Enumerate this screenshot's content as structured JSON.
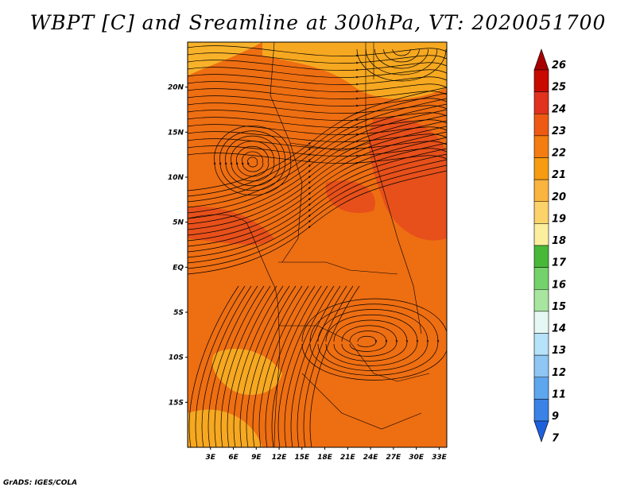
{
  "title": "WBPT [C] and Sreamline at 300hPa, VT: 2020051700",
  "credit": "GrADS: IGES/COLA",
  "map": {
    "lat_labels": [
      "20N",
      "15N",
      "10N",
      "5N",
      "EQ",
      "5S",
      "10S",
      "15S"
    ],
    "lat_values": [
      20,
      15,
      10,
      5,
      0,
      -5,
      -10,
      -15
    ],
    "lon_labels": [
      "3E",
      "6E",
      "9E",
      "12E",
      "15E",
      "18E",
      "21E",
      "24E",
      "27E",
      "30E",
      "33E"
    ],
    "lon_values": [
      3,
      6,
      9,
      12,
      15,
      18,
      21,
      24,
      27,
      30,
      33
    ],
    "lon_range": [
      0,
      34
    ],
    "lat_range": [
      -20,
      25
    ],
    "background_color": "#ee6e12",
    "regions": [
      {
        "name": "northeast-cool",
        "color": "#f6a820"
      },
      {
        "name": "north-cool",
        "color": "#f8b22a"
      },
      {
        "name": "southwest-cool",
        "color": "#f6a820"
      },
      {
        "name": "west-warm",
        "color": "#e7501a"
      },
      {
        "name": "east-warm",
        "color": "#e7501a"
      }
    ]
  },
  "colorbar": {
    "labels": [
      "26",
      "25",
      "24",
      "23",
      "22",
      "21",
      "20",
      "19",
      "18",
      "17",
      "16",
      "15",
      "14",
      "13",
      "12",
      "11",
      "9",
      "7"
    ],
    "colors": [
      "#a60000",
      "#c80a00",
      "#e0321e",
      "#ee5a14",
      "#f37d10",
      "#f79c10",
      "#fab440",
      "#fcd36a",
      "#fbef9e",
      "#48b838",
      "#74d26a",
      "#a8e6a0",
      "#e6f8f4",
      "#b6e2fa",
      "#8ec6f4",
      "#5ea6ee",
      "#3a82e6",
      "#1e5fdc"
    ]
  }
}
